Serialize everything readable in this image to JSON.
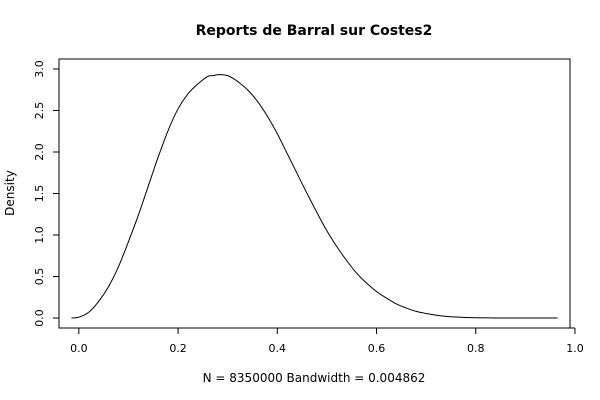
{
  "chart_data": {
    "type": "line",
    "title": "Reports de Barral sur Costes2",
    "xlabel": "N = 8350000   Bandwidth = 0.004862",
    "ylabel": "Density",
    "xlim": [
      -0.04,
      0.99
    ],
    "ylim": [
      -0.12,
      3.12
    ],
    "xticks": [
      0.0,
      0.2,
      0.4,
      0.6,
      0.8,
      1.0
    ],
    "xtick_labels": [
      "0.0",
      "0.2",
      "0.4",
      "0.6",
      "0.8",
      "1.0"
    ],
    "yticks": [
      0.0,
      0.5,
      1.0,
      1.5,
      2.0,
      2.5,
      3.0
    ],
    "ytick_labels": [
      "0.0",
      "0.5",
      "1.0",
      "1.5",
      "2.0",
      "2.5",
      "3.0"
    ],
    "grid": false,
    "series": [
      {
        "x": [
          -0.015,
          0.0,
          0.02,
          0.04,
          0.06,
          0.08,
          0.1,
          0.12,
          0.14,
          0.16,
          0.18,
          0.2,
          0.22,
          0.24,
          0.26,
          0.27,
          0.28,
          0.29,
          0.3,
          0.31,
          0.32,
          0.34,
          0.36,
          0.38,
          0.4,
          0.42,
          0.44,
          0.46,
          0.48,
          0.5,
          0.52,
          0.54,
          0.56,
          0.58,
          0.6,
          0.62,
          0.64,
          0.66,
          0.68,
          0.7,
          0.72,
          0.74,
          0.76,
          0.78,
          0.8,
          0.84,
          0.88,
          0.92,
          0.965
        ],
        "y": [
          0.0,
          0.01,
          0.07,
          0.2,
          0.38,
          0.62,
          0.92,
          1.24,
          1.59,
          1.94,
          2.26,
          2.52,
          2.7,
          2.82,
          2.91,
          2.92,
          2.93,
          2.93,
          2.92,
          2.89,
          2.85,
          2.75,
          2.61,
          2.43,
          2.22,
          1.98,
          1.74,
          1.5,
          1.27,
          1.05,
          0.86,
          0.69,
          0.54,
          0.42,
          0.32,
          0.24,
          0.17,
          0.12,
          0.08,
          0.055,
          0.035,
          0.02,
          0.012,
          0.007,
          0.004,
          0.001,
          0.0,
          0.0,
          0.0
        ]
      }
    ]
  }
}
